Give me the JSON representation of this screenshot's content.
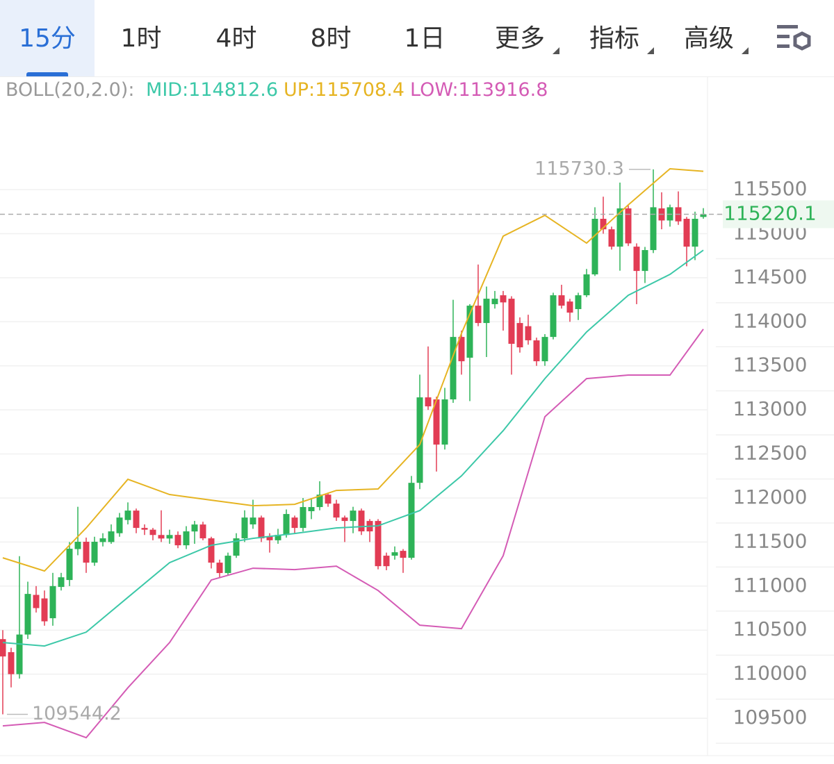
{
  "tabs": [
    "15分",
    "1时",
    "4时",
    "8时",
    "1日",
    "更多",
    "指标",
    "高级"
  ],
  "indicator": {
    "label": "BOLL(20,2.0):",
    "items": [
      "MID:114812.6",
      "UP:115708.4",
      "LOW:113916.8"
    ]
  },
  "chart_data": {
    "type": "candlestick",
    "ylim": [
      109075,
      116470
    ],
    "yticks": [
      109500,
      110000,
      110500,
      111000,
      111500,
      112000,
      112500,
      113000,
      113500,
      114000,
      114500,
      115000,
      115500
    ],
    "grid": true,
    "up_color": "#2eb358",
    "down_color": "#e23c54",
    "open": [
      110398,
      110250,
      110000,
      110450,
      110900,
      110860,
      110635,
      110990,
      111069,
      111420,
      111503,
      111266,
      111500,
      111500,
      111600,
      111750,
      111857,
      111660,
      111640,
      111580,
      111540,
      111581,
      111463,
      111620,
      111699,
      111542,
      111266,
      111148,
      111345,
      111542,
      111700,
      111778,
      111560,
      111520,
      111580,
      111778,
      111660,
      111850,
      111897,
      112038,
      111936,
      111778,
      111739,
      111857,
      111739,
      111739,
      111345,
      111345,
      111400,
      111321,
      112172,
      113142,
      113119,
      112606,
      113119,
      113828,
      113592,
      114183,
      113986,
      114200,
      114301,
      114262,
      113986,
      113950,
      113789,
      113552,
      113828,
      114301,
      114230,
      114144,
      114301,
      114538,
      115169,
      115050,
      114853,
      115287,
      114853,
      114577,
      114814,
      115287,
      115150,
      115300,
      115169,
      114853,
      115190
    ],
    "high": [
      110500,
      110300,
      111340,
      111050,
      111000,
      110950,
      111150,
      111150,
      111500,
      111900,
      111550,
      111560,
      111600,
      111700,
      111830,
      111950,
      111880,
      111700,
      111660,
      111860,
      111640,
      111620,
      111680,
      111740,
      111730,
      111560,
      111300,
      111380,
      111600,
      111860,
      111980,
      111800,
      111600,
      111650,
      111870,
      111800,
      112000,
      112000,
      112190,
      112060,
      111980,
      111800,
      111900,
      111880,
      111760,
      111760,
      111380,
      111450,
      111420,
      112250,
      113400,
      113720,
      113150,
      113250,
      114250,
      113900,
      114200,
      114650,
      114400,
      114350,
      114350,
      114290,
      114050,
      114080,
      113820,
      113860,
      114330,
      114420,
      114260,
      114330,
      114600,
      115300,
      115420,
      115080,
      115580,
      115320,
      114890,
      114850,
      115730.3,
      115470,
      115330,
      115480,
      115190,
      115250,
      115290
    ],
    "low": [
      109544.2,
      109850,
      109950,
      110400,
      110700,
      110550,
      110550,
      110950,
      111000,
      111350,
      111150,
      111230,
      111450,
      111480,
      111560,
      111700,
      111600,
      111580,
      111520,
      111500,
      111480,
      111430,
      111420,
      111480,
      111520,
      111200,
      111090,
      111120,
      111320,
      111500,
      111650,
      111500,
      111380,
      111480,
      111550,
      111600,
      111620,
      111760,
      111860,
      111900,
      111740,
      111500,
      111600,
      111580,
      111500,
      111190,
      111180,
      111300,
      111150,
      111300,
      112100,
      113000,
      112300,
      112550,
      113080,
      113400,
      113100,
      113950,
      113600,
      114150,
      113900,
      113400,
      113650,
      113740,
      113500,
      113500,
      113800,
      114150,
      114000,
      114020,
      114280,
      114520,
      115000,
      114820,
      114580,
      114860,
      114200,
      114440,
      114780,
      115050,
      115080,
      115100,
      114630,
      114700,
      115170
    ],
    "close": [
      110201,
      110000,
      110450,
      110911,
      110750,
      110600,
      111000,
      111100,
      111424,
      111503,
      111266,
      111503,
      111542,
      111621,
      111778,
      111857,
      111660,
      111640,
      111580,
      111540,
      111580,
      111463,
      111621,
      111699,
      111542,
      111266,
      111148,
      111345,
      111542,
      111778,
      111778,
      111542,
      111520,
      111581,
      111818,
      111660,
      111897,
      111897,
      112038,
      111936,
      111778,
      111739,
      111857,
      111621,
      111621,
      111226,
      111226,
      111384,
      111321,
      112172,
      113142,
      113040,
      112606,
      113119,
      113828,
      113552,
      114183,
      113986,
      114262,
      114262,
      114220,
      113750,
      113710,
      113790,
      113552,
      113828,
      114301,
      114183,
      114104,
      114301,
      114538,
      115169,
      115050,
      114853,
      115287,
      114890,
      114577,
      114814,
      115300,
      115150,
      115300,
      115140,
      114853,
      115169,
      115220.1
    ],
    "line_x": [
      0,
      5,
      10,
      15,
      20,
      25,
      30,
      35,
      40,
      45,
      50,
      55,
      60,
      65,
      70,
      75,
      80,
      84
    ],
    "series": [
      {
        "color": "#3cc8a8",
        "values": [
          110359,
          110320,
          110477,
          110872,
          111266,
          111463,
          111542,
          111597,
          111660,
          111684,
          111857,
          112251,
          112764,
          113355,
          113884,
          114301,
          114538,
          114812.6
        ]
      },
      {
        "color": "#e6b422",
        "values": [
          111321,
          111171,
          111660,
          112212,
          112039,
          111975,
          111912,
          111928,
          112086,
          112102,
          112606,
          113868,
          114972,
          115208,
          114893,
          115327,
          115737,
          115708.4
        ]
      },
      {
        "color": "#d45bb5",
        "values": [
          109413,
          109452,
          109279,
          109846,
          110359,
          111069,
          111203,
          111187,
          111226,
          110950,
          110556,
          110517,
          111345,
          112922,
          113355,
          113395,
          113395,
          113916.8
        ]
      }
    ]
  }
}
